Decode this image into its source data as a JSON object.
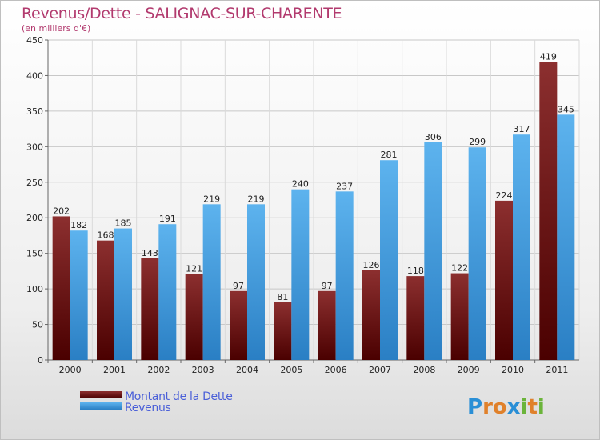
{
  "chart_data": {
    "type": "bar",
    "title": "Revenus/Dette - SALIGNAC-SUR-CHARENTE",
    "subtitle": "(en milliers d'€)",
    "categories": [
      "2000",
      "2001",
      "2002",
      "2003",
      "2004",
      "2005",
      "2006",
      "2007",
      "2008",
      "2009",
      "2010",
      "2011"
    ],
    "series": [
      {
        "name": "Montant de la Dette",
        "color": "#7b1414",
        "values": [
          202,
          168,
          143,
          121,
          97,
          81,
          97,
          126,
          118,
          122,
          224,
          419
        ]
      },
      {
        "name": "Revenus",
        "color": "#4aa3e3",
        "values": [
          182,
          185,
          191,
          219,
          219,
          240,
          237,
          281,
          306,
          299,
          317,
          345
        ]
      }
    ],
    "yticks": [
      0,
      50,
      100,
      150,
      200,
      250,
      300,
      350,
      400,
      450
    ],
    "ylim": [
      0,
      450
    ],
    "grid": true,
    "legend_position": "bottom-left",
    "xlabel": "",
    "ylabel": ""
  },
  "logo": {
    "text": "Proxiti",
    "letters": [
      {
        "ch": "P",
        "color": "#2a8fd6"
      },
      {
        "ch": "r",
        "color": "#e0812b"
      },
      {
        "ch": "o",
        "color": "#e0812b"
      },
      {
        "ch": "x",
        "color": "#2a8fd6"
      },
      {
        "ch": "i",
        "color": "#6bb43a"
      },
      {
        "ch": "t",
        "color": "#e0812b"
      },
      {
        "ch": "i",
        "color": "#6bb43a"
      }
    ]
  }
}
